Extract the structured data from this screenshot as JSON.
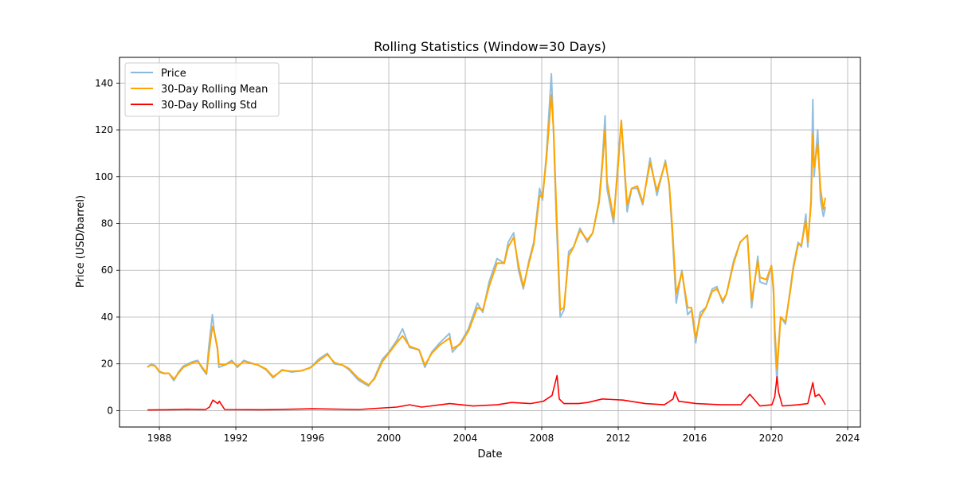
{
  "chart_data": {
    "type": "line",
    "title": "Rolling Statistics (Window=30 Days)",
    "xlabel": "Date",
    "ylabel": "Price (USD/barrel)",
    "xlim": [
      "1985-12-01",
      "2024-09-01"
    ],
    "ylim": [
      -7,
      151
    ],
    "x_ticks": [
      "1988",
      "1992",
      "1996",
      "2000",
      "2004",
      "2008",
      "2012",
      "2016",
      "2020",
      "2024"
    ],
    "y_ticks": [
      0,
      20,
      40,
      60,
      80,
      100,
      120,
      140
    ],
    "grid": true,
    "legend_position": "upper-left",
    "legend": [
      "Price",
      "30-Day Rolling Mean",
      "30-Day Rolling Std"
    ],
    "colors": {
      "price": "#88b8da",
      "mean": "#ffa500",
      "std": "#ff0000"
    },
    "series": [
      {
        "name": "Price",
        "x": [
          "1987-05-20",
          "1987-08-01",
          "1987-10-15",
          "1988-01-01",
          "1988-04-01",
          "1988-07-01",
          "1988-10-05",
          "1989-01-01",
          "1989-04-01",
          "1989-07-01",
          "1989-10-01",
          "1990-01-05",
          "1990-03-15",
          "1990-06-20",
          "1990-08-01",
          "1990-10-10",
          "1990-11-20",
          "1991-01-15",
          "1991-02-10",
          "1991-06-01",
          "1991-10-15",
          "1992-02-01",
          "1992-06-01",
          "1992-10-01",
          "1993-03-01",
          "1993-08-01",
          "1993-12-15",
          "1994-06-01",
          "1994-12-01",
          "1995-06-01",
          "1995-12-01",
          "1996-05-01",
          "1996-10-15",
          "1997-03-01",
          "1997-08-01",
          "1997-12-01",
          "1998-06-01",
          "1998-12-10",
          "1999-04-01",
          "1999-09-01",
          "2000-01-01",
          "2000-06-01",
          "2000-09-20",
          "2001-02-01",
          "2001-08-01",
          "2001-11-20",
          "2002-04-01",
          "2002-09-01",
          "2003-03-05",
          "2003-05-01",
          "2003-10-01",
          "2004-03-01",
          "2004-08-20",
          "2004-12-01",
          "2005-04-01",
          "2005-08-30",
          "2006-01-15",
          "2006-04-01",
          "2006-07-15",
          "2006-10-15",
          "2007-01-15",
          "2007-05-01",
          "2007-08-01",
          "2007-11-20",
          "2008-01-15",
          "2008-04-01",
          "2008-07-04",
          "2008-08-15",
          "2008-10-01",
          "2008-12-20",
          "2009-03-01",
          "2009-06-01",
          "2009-09-01",
          "2010-01-01",
          "2010-05-20",
          "2010-09-01",
          "2011-01-01",
          "2011-03-01",
          "2011-04-25",
          "2011-06-01",
          "2011-10-05",
          "2012-01-01",
          "2012-03-01",
          "2012-06-20",
          "2012-09-15",
          "2013-01-01",
          "2013-04-15",
          "2013-09-01",
          "2014-01-10",
          "2014-06-20",
          "2014-09-01",
          "2014-11-01",
          "2015-01-13",
          "2015-05-01",
          "2015-08-20",
          "2015-11-01",
          "2016-01-20",
          "2016-04-15",
          "2016-08-01",
          "2016-12-01",
          "2017-03-01",
          "2017-06-20",
          "2017-09-01",
          "2018-01-15",
          "2018-05-20",
          "2018-10-03",
          "2018-12-24",
          "2019-04-20",
          "2019-06-01",
          "2019-10-01",
          "2020-01-06",
          "2020-02-15",
          "2020-03-10",
          "2020-04-21",
          "2020-05-20",
          "2020-07-01",
          "2020-10-01",
          "2021-01-01",
          "2021-03-01",
          "2021-06-01",
          "2021-08-01",
          "2021-10-25",
          "2021-12-01",
          "2022-02-01",
          "2022-03-08",
          "2022-04-01",
          "2022-06-08",
          "2022-08-01",
          "2022-09-25",
          "2022-11-01"
        ],
        "values": [
          18.5,
          20,
          19.2,
          16.5,
          15.8,
          16,
          12.8,
          16.5,
          19,
          20,
          21,
          21.5,
          18.5,
          15.5,
          27,
          41,
          33,
          26,
          18.5,
          19.5,
          21.5,
          18.5,
          21.5,
          20.5,
          19.5,
          17.5,
          14,
          17.5,
          16.5,
          17,
          18.5,
          22,
          24.5,
          20,
          19.5,
          17.5,
          13,
          10.5,
          14,
          22,
          25,
          30,
          35,
          27,
          26,
          18.5,
          25,
          29,
          33,
          25,
          29,
          35,
          46,
          42,
          55,
          65,
          63,
          72,
          76,
          60,
          52,
          64,
          72,
          95,
          90,
          110,
          144,
          118,
          85,
          40,
          43,
          68,
          70,
          78,
          72,
          76,
          90,
          106,
          126,
          95,
          80,
          108,
          124,
          85,
          95,
          95,
          88,
          108,
          92,
          107,
          96,
          75,
          46,
          60,
          41,
          43,
          29,
          42,
          44,
          52,
          53,
          46,
          50,
          64,
          72,
          75,
          44,
          66,
          55,
          54,
          62,
          50,
          30,
          12,
          28,
          40,
          37,
          52,
          62,
          72,
          70,
          84,
          70,
          90,
          133,
          100,
          120,
          90,
          83,
          87
        ]
      },
      {
        "name": "30-Day Rolling Mean",
        "x": [
          "1987-05-20",
          "1987-08-01",
          "1987-10-15",
          "1988-01-01",
          "1988-04-01",
          "1988-07-01",
          "1988-10-05",
          "1989-01-01",
          "1989-04-01",
          "1989-07-01",
          "1989-10-01",
          "1990-01-05",
          "1990-03-15",
          "1990-06-20",
          "1990-08-01",
          "1990-10-10",
          "1990-11-20",
          "1991-01-15",
          "1991-02-10",
          "1991-06-01",
          "1991-10-15",
          "1992-02-01",
          "1992-06-01",
          "1992-10-01",
          "1993-03-01",
          "1993-08-01",
          "1993-12-15",
          "1994-06-01",
          "1994-12-01",
          "1995-06-01",
          "1995-12-01",
          "1996-05-01",
          "1996-10-15",
          "1997-03-01",
          "1997-08-01",
          "1997-12-01",
          "1998-06-01",
          "1998-12-10",
          "1999-04-01",
          "1999-09-01",
          "2000-01-01",
          "2000-06-01",
          "2000-09-20",
          "2001-02-01",
          "2001-08-01",
          "2001-11-20",
          "2002-04-01",
          "2002-09-01",
          "2003-03-05",
          "2003-05-01",
          "2003-10-01",
          "2004-03-01",
          "2004-08-20",
          "2004-12-01",
          "2005-04-01",
          "2005-08-30",
          "2006-01-15",
          "2006-04-01",
          "2006-07-15",
          "2006-10-15",
          "2007-01-15",
          "2007-05-01",
          "2007-08-01",
          "2007-11-20",
          "2008-01-15",
          "2008-04-01",
          "2008-07-04",
          "2008-08-15",
          "2008-10-01",
          "2008-12-20",
          "2009-03-01",
          "2009-06-01",
          "2009-09-01",
          "2010-01-01",
          "2010-05-20",
          "2010-09-01",
          "2011-01-01",
          "2011-03-01",
          "2011-04-25",
          "2011-06-01",
          "2011-10-05",
          "2012-01-01",
          "2012-03-01",
          "2012-06-20",
          "2012-09-15",
          "2013-01-01",
          "2013-04-15",
          "2013-09-01",
          "2014-01-10",
          "2014-06-20",
          "2014-09-01",
          "2014-11-01",
          "2015-01-13",
          "2015-05-01",
          "2015-08-20",
          "2015-11-01",
          "2016-01-20",
          "2016-04-15",
          "2016-08-01",
          "2016-12-01",
          "2017-03-01",
          "2017-06-20",
          "2017-09-01",
          "2018-01-15",
          "2018-05-20",
          "2018-10-03",
          "2018-12-24",
          "2019-04-20",
          "2019-06-01",
          "2019-10-01",
          "2020-01-06",
          "2020-02-15",
          "2020-03-10",
          "2020-04-21",
          "2020-05-20",
          "2020-07-01",
          "2020-10-01",
          "2021-01-01",
          "2021-03-01",
          "2021-06-01",
          "2021-08-01",
          "2021-10-25",
          "2021-12-01",
          "2022-02-01",
          "2022-03-08",
          "2022-04-01",
          "2022-06-08",
          "2022-08-01",
          "2022-09-25",
          "2022-11-01"
        ],
        "values": [
          18.8,
          19.5,
          19,
          16.8,
          16,
          16,
          13.5,
          16,
          18.5,
          19.5,
          20.5,
          21,
          19,
          16,
          24,
          36,
          33,
          27,
          20,
          19.5,
          21,
          19,
          21,
          20.3,
          19.5,
          17.8,
          14.5,
          17.2,
          16.8,
          17,
          18.4,
          21.3,
          24,
          20.5,
          19.5,
          18,
          13.8,
          11,
          13.5,
          21,
          24.5,
          29,
          32,
          27.5,
          26,
          19.5,
          24.5,
          28,
          31,
          26.5,
          28.5,
          34,
          44,
          43,
          53,
          63,
          63,
          70,
          74,
          62,
          53,
          63,
          71,
          92,
          91,
          108,
          135,
          120,
          90,
          43,
          44,
          66,
          70,
          77,
          73,
          76,
          89,
          104,
          120,
          98,
          82,
          105,
          124,
          88,
          95,
          96,
          89,
          106,
          94,
          106,
          97,
          78,
          50,
          59,
          44,
          44,
          31,
          40,
          44,
          51,
          52,
          47,
          50,
          63,
          72,
          75,
          47,
          64,
          57,
          56,
          62,
          52,
          35,
          18,
          26,
          40,
          38,
          51,
          61,
          71,
          71,
          81,
          72,
          88,
          118,
          104,
          114,
          95,
          86,
          91
        ]
      },
      {
        "name": "30-Day Rolling Std",
        "x": [
          "1987-05-20",
          "1988-06-01",
          "1989-06-01",
          "1990-06-01",
          "1990-08-15",
          "1990-10-20",
          "1991-01-20",
          "1991-02-20",
          "1991-06-01",
          "1993-06-01",
          "1996-01-01",
          "1998-06-01",
          "2000-06-01",
          "2001-02-01",
          "2001-09-20",
          "2003-03-10",
          "2004-06-01",
          "2005-09-01",
          "2006-06-01",
          "2007-06-01",
          "2008-02-01",
          "2008-07-15",
          "2008-10-20",
          "2008-12-01",
          "2009-03-01",
          "2009-12-01",
          "2010-06-01",
          "2011-03-01",
          "2012-04-01",
          "2013-06-01",
          "2014-06-01",
          "2014-11-15",
          "2014-12-20",
          "2015-03-01",
          "2015-08-25",
          "2016-02-01",
          "2017-06-01",
          "2018-06-01",
          "2018-11-20",
          "2019-06-01",
          "2020-01-15",
          "2020-03-10",
          "2020-04-22",
          "2020-05-20",
          "2020-08-01",
          "2021-06-01",
          "2021-12-01",
          "2022-03-08",
          "2022-04-20",
          "2022-07-01",
          "2022-09-01",
          "2022-11-01"
        ],
        "values": [
          0.3,
          0.4,
          0.6,
          0.5,
          1.5,
          4.5,
          3,
          4,
          0.5,
          0.4,
          0.8,
          0.5,
          1.5,
          2.5,
          1.5,
          3,
          2,
          2.5,
          3.5,
          3,
          4,
          6.5,
          15,
          5,
          3,
          3,
          3.5,
          5,
          4.5,
          3,
          2.5,
          5,
          8,
          4,
          3.5,
          3,
          2.5,
          2.5,
          7,
          2,
          2.5,
          6,
          14.5,
          8,
          2,
          2.5,
          3,
          12,
          6,
          7,
          5,
          2.5
        ]
      }
    ]
  }
}
